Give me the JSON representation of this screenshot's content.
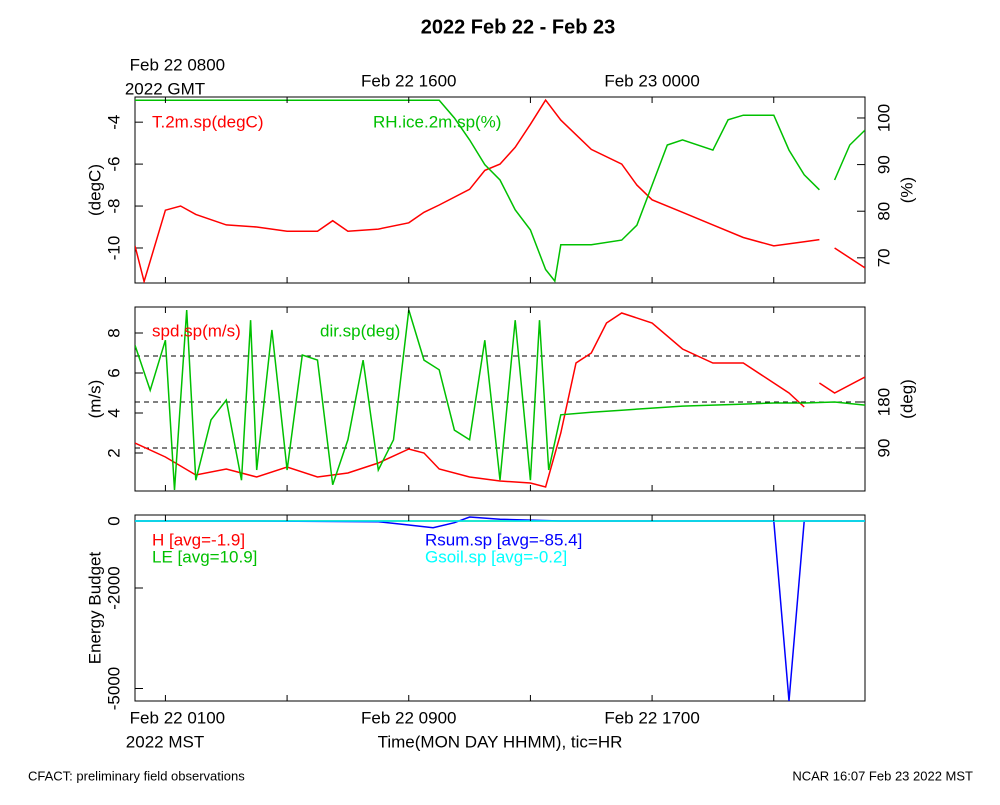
{
  "title": "2022 Feb 22 - Feb 23",
  "footer_left": "CFACT: preliminary field observations",
  "footer_right": "NCAR 16:07 Feb 23 2022 MST",
  "chart_data": [
    {
      "type": "line",
      "xlim": [
        0,
        24
      ],
      "ylabel": "(degC)",
      "ylim": [
        -11.67,
        -2.8
      ],
      "yticks": [
        -10,
        -8,
        -6,
        -4
      ],
      "y2label": "(%)",
      "y2lim": [
        64.6,
        104.5
      ],
      "y2ticks": [
        70,
        80,
        90,
        100
      ],
      "x2ticks": [
        {
          "value": 1,
          "label": "Feb 22 0800"
        },
        {
          "value": 9,
          "label": "Feb 22 1600"
        },
        {
          "value": 17,
          "label": "Feb 23 0000"
        }
      ],
      "x2label": "2022 GMT",
      "series": [
        {
          "name": "T.2m.sp(degC)",
          "color": "#ff0000",
          "x": [
            0,
            0.3,
            1,
            1.5,
            2,
            3,
            4,
            5,
            6,
            6.5,
            7,
            8,
            9,
            9.5,
            10,
            11,
            11.5,
            12,
            12.5,
            13,
            13.5,
            14,
            14.5,
            15,
            16,
            16.5,
            17,
            18,
            19,
            20,
            21,
            22,
            22.5,
            22.7,
            23,
            24
          ],
          "values": [
            -9.9,
            -11.6,
            -8.2,
            -8.0,
            -8.4,
            -8.9,
            -9.0,
            -9.2,
            -9.2,
            -8.7,
            -9.2,
            -9.1,
            -8.8,
            -8.3,
            -7.95,
            -7.2,
            -6.3,
            -6.0,
            -5.2,
            -4.1,
            -2.95,
            -3.9,
            -4.6,
            -5.3,
            -6.0,
            -7.0,
            -7.7,
            -8.3,
            -8.9,
            -9.5,
            -9.9,
            -9.7,
            -9.6,
            null,
            -10.0,
            -10.95
          ]
        },
        {
          "name": "RH.ice.2m.sp(%)",
          "color": "#00c000",
          "axis": "y2",
          "x": [
            0,
            10,
            10.5,
            11,
            11.5,
            12,
            12.5,
            13,
            13.5,
            13.8,
            14,
            15,
            16,
            16.5,
            17,
            17.5,
            18,
            19,
            19.5,
            20,
            21,
            21.5,
            22,
            22.5,
            22.7,
            23,
            23.5,
            24
          ],
          "values": [
            103.8,
            103.8,
            100,
            95.3,
            90,
            86.7,
            80.3,
            76,
            67.5,
            65,
            72.8,
            72.8,
            73.8,
            77,
            85.6,
            94.2,
            95.3,
            93.1,
            99.6,
            100.6,
            100.6,
            93.1,
            87.8,
            84.6,
            null,
            86.7,
            94.2,
            97.4
          ]
        }
      ]
    },
    {
      "type": "line",
      "xlim": [
        0,
        24
      ],
      "ylabel": "(m/s)",
      "ylim": [
        0.1,
        9.3
      ],
      "yticks": [
        2,
        4,
        6,
        8
      ],
      "y2label": "(deg)",
      "y2lim": [
        5.9,
        365.9
      ],
      "y2ticks": [
        90,
        180
      ],
      "reference_lines_y2": [
        90,
        180,
        270
      ],
      "series": [
        {
          "name": "spd.sp(m/s)",
          "color": "#ff0000",
          "x": [
            0,
            1,
            2,
            3,
            4,
            5,
            6,
            7,
            8,
            9,
            9.5,
            10,
            11,
            12,
            13,
            13.5,
            14,
            14.5,
            15,
            15.5,
            16,
            17,
            18,
            19,
            20,
            21,
            21.5,
            22,
            22.2,
            22.5,
            23,
            24
          ],
          "values": [
            2.5,
            1.8,
            0.9,
            1.2,
            0.8,
            1.3,
            0.8,
            1.0,
            1.5,
            2.2,
            2.0,
            1.2,
            0.8,
            0.6,
            0.5,
            0.3,
            3.0,
            6.5,
            7.0,
            8.5,
            9.0,
            8.5,
            7.2,
            6.5,
            6.5,
            5.5,
            5.0,
            4.3,
            null,
            5.5,
            5.0,
            5.8
          ]
        },
        {
          "name": "dir.sp(deg)",
          "color": "#00c000",
          "axis": "y2",
          "x": [
            0,
            0.5,
            1,
            1.3,
            1.7,
            2,
            2.5,
            3,
            3.5,
            3.8,
            4,
            4.5,
            5,
            5.5,
            6,
            6.5,
            7,
            7.5,
            8,
            8.5,
            9,
            9.5,
            10,
            10.5,
            11,
            11.5,
            12,
            12.5,
            13,
            13.3,
            13.6,
            14,
            15,
            16,
            17,
            18,
            19,
            20,
            21,
            22,
            23,
            24
          ],
          "values": [
            291,
            203,
            301,
            8,
            360,
            27,
            145,
            184,
            27,
            340,
            47,
            321,
            47,
            272,
            262,
            18,
            106,
            262,
            47,
            106,
            360,
            262,
            243,
            125,
            106,
            301,
            27,
            340,
            27,
            340,
            47,
            155,
            160,
            164,
            168,
            172,
            174,
            176,
            178,
            178,
            180,
            174
          ]
        }
      ]
    },
    {
      "type": "line",
      "xlim": [
        0,
        24
      ],
      "ylabel": "Energy Budget",
      "ylim": [
        -5373,
        179
      ],
      "yticks": [
        0,
        -2000,
        -5000
      ],
      "reference_lines": [
        0
      ],
      "xticks": [
        {
          "value": 1,
          "label": "Feb 22 0100"
        },
        {
          "value": 9,
          "label": "Feb 22 0900"
        },
        {
          "value": 17,
          "label": "Feb 22 1700"
        }
      ],
      "xminor_ticks": [
        5,
        13,
        21
      ],
      "xaxis_note": "2022 MST",
      "xlabel": "Time(MON DAY HHMM), tic=HR",
      "series": [
        {
          "name": "H [avg=-1.9]",
          "color": "#ff0000",
          "x": [
            0,
            4,
            8,
            9,
            9.8,
            10.5,
            11,
            12,
            14,
            20,
            21,
            21.5,
            22,
            24
          ],
          "values": [
            0,
            0,
            0,
            0,
            0,
            0,
            0,
            0,
            0,
            0,
            0,
            0,
            0,
            0
          ]
        },
        {
          "name": "LE [avg=10.9]",
          "color": "#00c000",
          "x": [
            0,
            4,
            8,
            9,
            9.8,
            10.5,
            11,
            12,
            14,
            20,
            21,
            21.5,
            22,
            24
          ],
          "values": [
            0,
            0,
            0,
            0,
            0,
            0,
            0,
            0,
            0,
            0,
            0,
            0,
            0,
            0
          ]
        },
        {
          "name": "Rsum.sp [avg=-85.4]",
          "color": "#0000ff",
          "x": [
            0,
            4,
            8,
            9,
            9.8,
            10.5,
            11,
            12,
            14,
            20,
            21,
            21.5,
            22,
            24
          ],
          "values": [
            0,
            0,
            -20,
            -120,
            -200,
            -50,
            120,
            50,
            0,
            0,
            0,
            -5370,
            0,
            0
          ]
        },
        {
          "name": "Gsoil.sp [avg=-0.2]",
          "color": "#00ffff",
          "x": [
            0,
            4,
            8,
            9,
            9.8,
            10.5,
            11,
            12,
            14,
            20,
            21,
            21.5,
            22,
            24
          ],
          "values": [
            0,
            0,
            0,
            0,
            0,
            0,
            0,
            0,
            0,
            0,
            0,
            0,
            0,
            0
          ]
        }
      ]
    }
  ]
}
